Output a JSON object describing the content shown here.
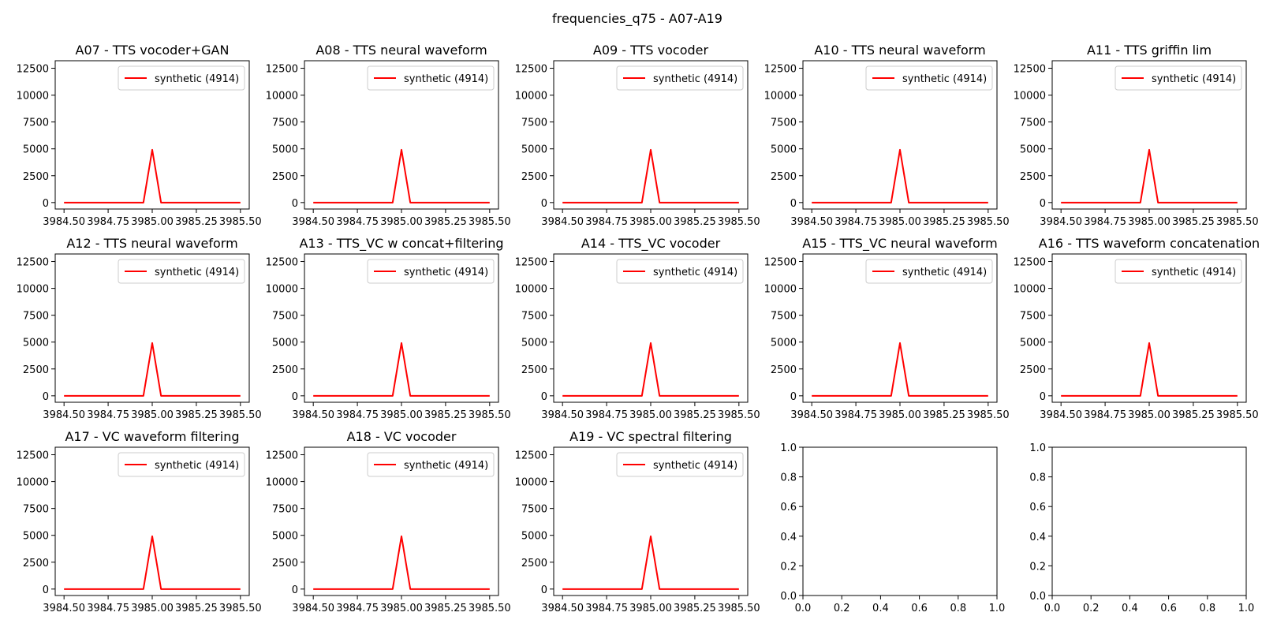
{
  "figure": {
    "title": "frequencies_q75 - A07-A19"
  },
  "chart_data": [
    {
      "type": "line",
      "title": "A07 - TTS vocoder+GAN",
      "xlim": [
        3984.45,
        3985.55
      ],
      "ylim": [
        -600,
        13200
      ],
      "xticks": [
        "3984.50",
        "3984.75",
        "3985.00",
        "3985.25",
        "3985.50"
      ],
      "yticks": [
        "0",
        "2500",
        "5000",
        "7500",
        "10000",
        "12500"
      ],
      "legend": "upper right",
      "series": [
        {
          "name": "synthetic (4914)",
          "color": "#ff0000",
          "x": [
            3984.5,
            3984.95,
            3985.0,
            3985.05,
            3985.5
          ],
          "y": [
            0,
            0,
            4914,
            0,
            0
          ]
        }
      ]
    },
    {
      "type": "line",
      "title": "A08 - TTS neural waveform",
      "xlim": [
        3984.45,
        3985.55
      ],
      "ylim": [
        -600,
        13200
      ],
      "xticks": [
        "3984.50",
        "3984.75",
        "3985.00",
        "3985.25",
        "3985.50"
      ],
      "yticks": [
        "0",
        "2500",
        "5000",
        "7500",
        "10000",
        "12500"
      ],
      "legend": "upper right",
      "series": [
        {
          "name": "synthetic (4914)",
          "color": "#ff0000",
          "x": [
            3984.5,
            3984.95,
            3985.0,
            3985.05,
            3985.5
          ],
          "y": [
            0,
            0,
            4914,
            0,
            0
          ]
        }
      ]
    },
    {
      "type": "line",
      "title": "A09 - TTS vocoder",
      "xlim": [
        3984.45,
        3985.55
      ],
      "ylim": [
        -600,
        13200
      ],
      "xticks": [
        "3984.50",
        "3984.75",
        "3985.00",
        "3985.25",
        "3985.50"
      ],
      "yticks": [
        "0",
        "2500",
        "5000",
        "7500",
        "10000",
        "12500"
      ],
      "legend": "upper right",
      "series": [
        {
          "name": "synthetic (4914)",
          "color": "#ff0000",
          "x": [
            3984.5,
            3984.95,
            3985.0,
            3985.05,
            3985.5
          ],
          "y": [
            0,
            0,
            4914,
            0,
            0
          ]
        }
      ]
    },
    {
      "type": "line",
      "title": "A10 - TTS neural waveform",
      "xlim": [
        3984.45,
        3985.55
      ],
      "ylim": [
        -600,
        13200
      ],
      "xticks": [
        "3984.50",
        "3984.75",
        "3985.00",
        "3985.25",
        "3985.50"
      ],
      "yticks": [
        "0",
        "2500",
        "5000",
        "7500",
        "10000",
        "12500"
      ],
      "legend": "upper right",
      "series": [
        {
          "name": "synthetic (4914)",
          "color": "#ff0000",
          "x": [
            3984.5,
            3984.95,
            3985.0,
            3985.05,
            3985.5
          ],
          "y": [
            0,
            0,
            4914,
            0,
            0
          ]
        }
      ]
    },
    {
      "type": "line",
      "title": "A11 - TTS griffin lim",
      "xlim": [
        3984.45,
        3985.55
      ],
      "ylim": [
        -600,
        13200
      ],
      "xticks": [
        "3984.50",
        "3984.75",
        "3985.00",
        "3985.25",
        "3985.50"
      ],
      "yticks": [
        "0",
        "2500",
        "5000",
        "7500",
        "10000",
        "12500"
      ],
      "legend": "upper right",
      "series": [
        {
          "name": "synthetic (4914)",
          "color": "#ff0000",
          "x": [
            3984.5,
            3984.95,
            3985.0,
            3985.05,
            3985.5
          ],
          "y": [
            0,
            0,
            4914,
            0,
            0
          ]
        }
      ]
    },
    {
      "type": "line",
      "title": "A12 - TTS neural waveform",
      "xlim": [
        3984.45,
        3985.55
      ],
      "ylim": [
        -600,
        13200
      ],
      "xticks": [
        "3984.50",
        "3984.75",
        "3985.00",
        "3985.25",
        "3985.50"
      ],
      "yticks": [
        "0",
        "2500",
        "5000",
        "7500",
        "10000",
        "12500"
      ],
      "legend": "upper right",
      "series": [
        {
          "name": "synthetic (4914)",
          "color": "#ff0000",
          "x": [
            3984.5,
            3984.95,
            3985.0,
            3985.05,
            3985.5
          ],
          "y": [
            0,
            0,
            4914,
            0,
            0
          ]
        }
      ]
    },
    {
      "type": "line",
      "title": "A13 - TTS_VC w concat+filtering",
      "xlim": [
        3984.45,
        3985.55
      ],
      "ylim": [
        -600,
        13200
      ],
      "xticks": [
        "3984.50",
        "3984.75",
        "3985.00",
        "3985.25",
        "3985.50"
      ],
      "yticks": [
        "0",
        "2500",
        "5000",
        "7500",
        "10000",
        "12500"
      ],
      "legend": "upper right",
      "series": [
        {
          "name": "synthetic (4914)",
          "color": "#ff0000",
          "x": [
            3984.5,
            3984.95,
            3985.0,
            3985.05,
            3985.5
          ],
          "y": [
            0,
            0,
            4914,
            0,
            0
          ]
        }
      ]
    },
    {
      "type": "line",
      "title": "A14 - TTS_VC vocoder",
      "xlim": [
        3984.45,
        3985.55
      ],
      "ylim": [
        -600,
        13200
      ],
      "xticks": [
        "3984.50",
        "3984.75",
        "3985.00",
        "3985.25",
        "3985.50"
      ],
      "yticks": [
        "0",
        "2500",
        "5000",
        "7500",
        "10000",
        "12500"
      ],
      "legend": "upper right",
      "series": [
        {
          "name": "synthetic (4914)",
          "color": "#ff0000",
          "x": [
            3984.5,
            3984.95,
            3985.0,
            3985.05,
            3985.5
          ],
          "y": [
            0,
            0,
            4914,
            0,
            0
          ]
        }
      ]
    },
    {
      "type": "line",
      "title": "A15 - TTS_VC neural waveform",
      "xlim": [
        3984.45,
        3985.55
      ],
      "ylim": [
        -600,
        13200
      ],
      "xticks": [
        "3984.50",
        "3984.75",
        "3985.00",
        "3985.25",
        "3985.50"
      ],
      "yticks": [
        "0",
        "2500",
        "5000",
        "7500",
        "10000",
        "12500"
      ],
      "legend": "upper right",
      "series": [
        {
          "name": "synthetic (4914)",
          "color": "#ff0000",
          "x": [
            3984.5,
            3984.95,
            3985.0,
            3985.05,
            3985.5
          ],
          "y": [
            0,
            0,
            4914,
            0,
            0
          ]
        }
      ]
    },
    {
      "type": "line",
      "title": "A16 - TTS waveform concatenation",
      "xlim": [
        3984.45,
        3985.55
      ],
      "ylim": [
        -600,
        13200
      ],
      "xticks": [
        "3984.50",
        "3984.75",
        "3985.00",
        "3985.25",
        "3985.50"
      ],
      "yticks": [
        "0",
        "2500",
        "5000",
        "7500",
        "10000",
        "12500"
      ],
      "legend": "upper right",
      "series": [
        {
          "name": "synthetic (4914)",
          "color": "#ff0000",
          "x": [
            3984.5,
            3984.95,
            3985.0,
            3985.05,
            3985.5
          ],
          "y": [
            0,
            0,
            4914,
            0,
            0
          ]
        }
      ]
    },
    {
      "type": "line",
      "title": "A17 - VC waveform filtering",
      "xlim": [
        3984.45,
        3985.55
      ],
      "ylim": [
        -600,
        13200
      ],
      "xticks": [
        "3984.50",
        "3984.75",
        "3985.00",
        "3985.25",
        "3985.50"
      ],
      "yticks": [
        "0",
        "2500",
        "5000",
        "7500",
        "10000",
        "12500"
      ],
      "legend": "upper right",
      "series": [
        {
          "name": "synthetic (4914)",
          "color": "#ff0000",
          "x": [
            3984.5,
            3984.95,
            3985.0,
            3985.05,
            3985.5
          ],
          "y": [
            0,
            0,
            4914,
            0,
            0
          ]
        }
      ]
    },
    {
      "type": "line",
      "title": "A18 - VC vocoder",
      "xlim": [
        3984.45,
        3985.55
      ],
      "ylim": [
        -600,
        13200
      ],
      "xticks": [
        "3984.50",
        "3984.75",
        "3985.00",
        "3985.25",
        "3985.50"
      ],
      "yticks": [
        "0",
        "2500",
        "5000",
        "7500",
        "10000",
        "12500"
      ],
      "legend": "upper right",
      "series": [
        {
          "name": "synthetic (4914)",
          "color": "#ff0000",
          "x": [
            3984.5,
            3984.95,
            3985.0,
            3985.05,
            3985.5
          ],
          "y": [
            0,
            0,
            4914,
            0,
            0
          ]
        }
      ]
    },
    {
      "type": "line",
      "title": "A19 - VC spectral filtering",
      "xlim": [
        3984.45,
        3985.55
      ],
      "ylim": [
        -600,
        13200
      ],
      "xticks": [
        "3984.50",
        "3984.75",
        "3985.00",
        "3985.25",
        "3985.50"
      ],
      "yticks": [
        "0",
        "2500",
        "5000",
        "7500",
        "10000",
        "12500"
      ],
      "legend": "upper right",
      "series": [
        {
          "name": "synthetic (4914)",
          "color": "#ff0000",
          "x": [
            3984.5,
            3984.95,
            3985.0,
            3985.05,
            3985.5
          ],
          "y": [
            0,
            0,
            4914,
            0,
            0
          ]
        }
      ]
    },
    {
      "type": "line",
      "title": "",
      "xlim": [
        0,
        1
      ],
      "ylim": [
        0,
        1
      ],
      "xticks": [
        "0.0",
        "0.2",
        "0.4",
        "0.6",
        "0.8",
        "1.0"
      ],
      "yticks": [
        "0.0",
        "0.2",
        "0.4",
        "0.6",
        "0.8",
        "1.0"
      ],
      "series": []
    },
    {
      "type": "line",
      "title": "",
      "xlim": [
        0,
        1
      ],
      "ylim": [
        0,
        1
      ],
      "xticks": [
        "0.0",
        "0.2",
        "0.4",
        "0.6",
        "0.8",
        "1.0"
      ],
      "yticks": [
        "0.0",
        "0.2",
        "0.4",
        "0.6",
        "0.8",
        "1.0"
      ],
      "series": []
    }
  ]
}
